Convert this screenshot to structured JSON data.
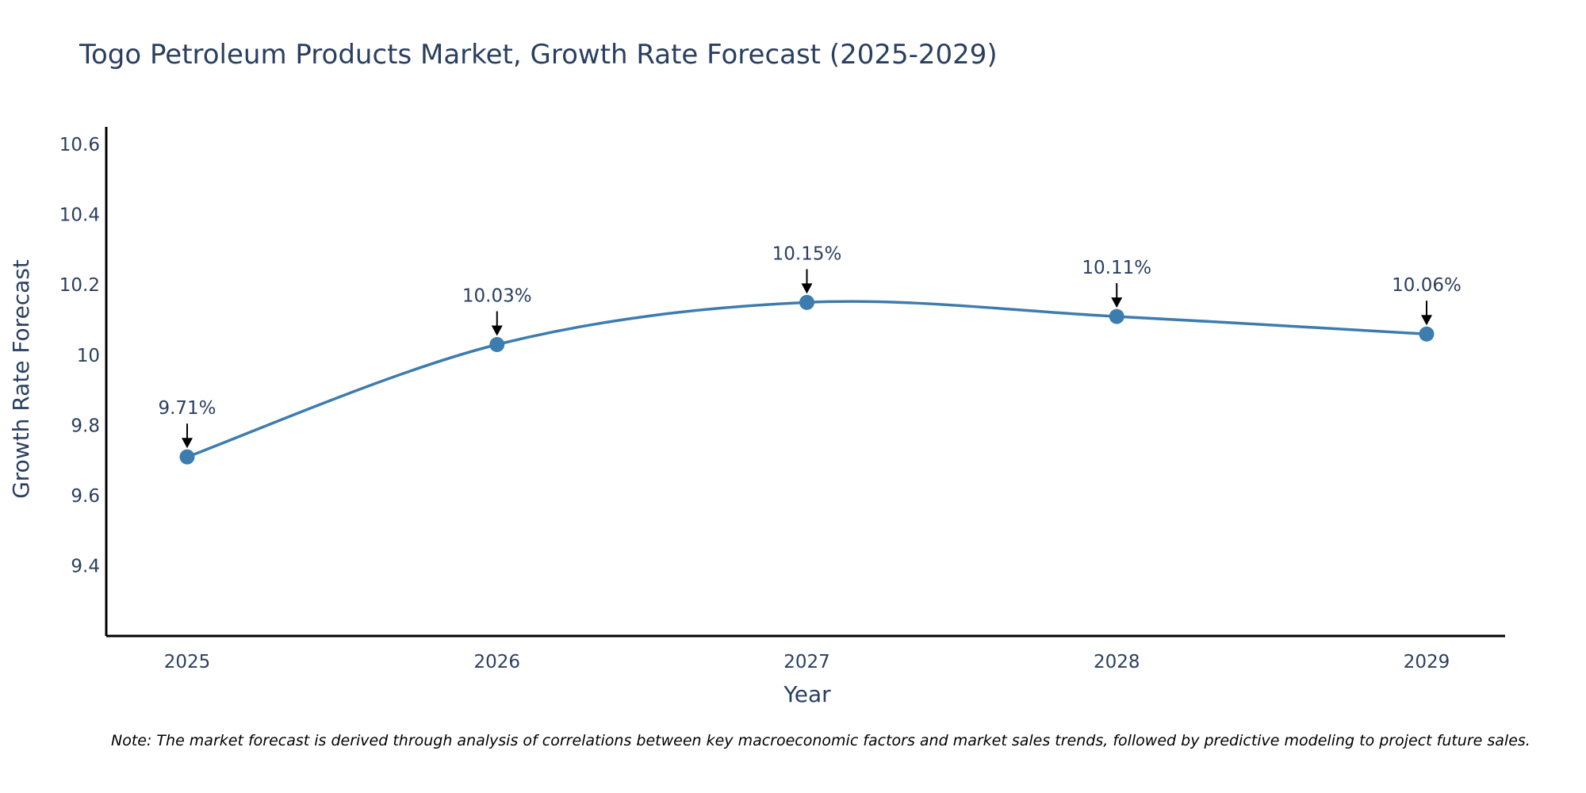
{
  "chart_data": {
    "type": "line",
    "title": "Togo Petroleum Products Market, Growth Rate Forecast (2025-2029)",
    "xlabel": "Year",
    "ylabel": "Growth Rate Forecast",
    "categories": [
      "2025",
      "2026",
      "2027",
      "2028",
      "2029"
    ],
    "series": [
      {
        "name": "Growth Rate Forecast",
        "values": [
          9.71,
          10.03,
          10.15,
          10.11,
          10.06
        ],
        "data_labels": [
          "9.71%",
          "10.03%",
          "10.15%",
          "10.11%",
          "10.06%"
        ]
      }
    ],
    "ylim": [
      9.2,
      10.65
    ],
    "yticks": [
      9.4,
      9.6,
      9.8,
      10,
      10.2,
      10.4,
      10.6
    ],
    "ytick_labels": [
      "9.4",
      "9.6",
      "9.8",
      "10",
      "10.2",
      "10.4",
      "10.6"
    ],
    "line_shape": "spline",
    "grid": false,
    "line_color": "#3d7caf",
    "note": "Note: The market forecast is derived through analysis of correlations between key macroeconomic factors and market sales trends, followed by predictive modeling to project future sales."
  }
}
